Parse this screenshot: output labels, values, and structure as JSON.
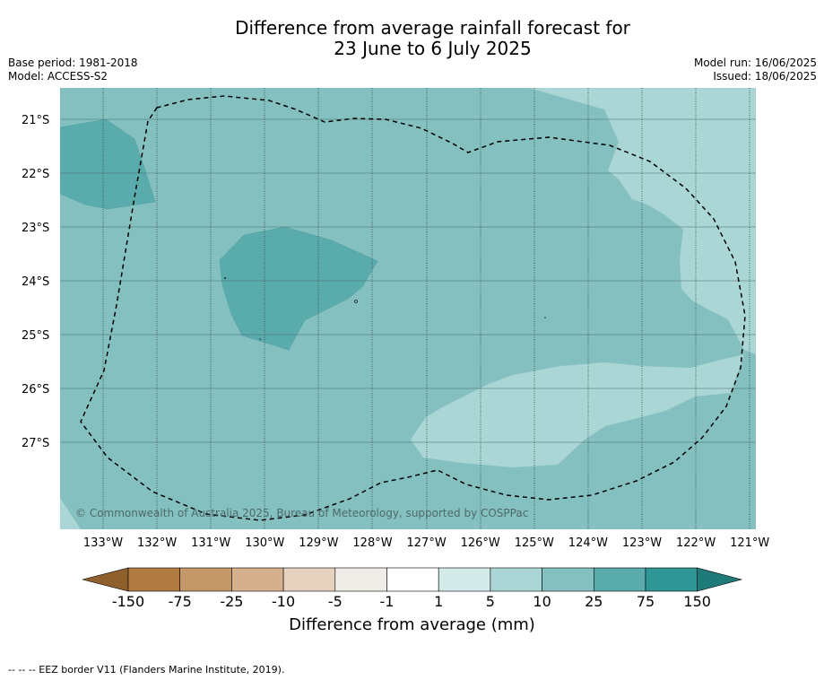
{
  "title_line1": "Difference from average rainfall forecast for",
  "title_line2": "23 June to 6 July 2025",
  "base_period": "Base period: 1981-2018",
  "model": "Model: ACCESS-S2",
  "model_run": "Model run: 16/06/2025",
  "issued": "Issued: 18/06/2025",
  "copyright": "© Commonwealth of Australia 2025, Bureau of Meteorology, supported by COSPPac",
  "x_ticks": [
    "133°W",
    "132°W",
    "131°W",
    "130°W",
    "129°W",
    "128°W",
    "127°W",
    "126°W",
    "125°W",
    "124°W",
    "123°W",
    "122°W",
    "121°W"
  ],
  "y_ticks": [
    "21°S",
    "22°S",
    "23°S",
    "24°S",
    "25°S",
    "26°S",
    "27°S"
  ],
  "colorbar": {
    "ticks": [
      "-150",
      "-75",
      "-25",
      "-10",
      "-5",
      "-1",
      "1",
      "5",
      "10",
      "25",
      "75",
      "150"
    ],
    "colors": [
      "#8f5f2c",
      "#b07a40",
      "#c39768",
      "#d4b08f",
      "#e6d2bf",
      "#f0ece7",
      "#ffffff",
      "#d4ebea",
      "#abd6d6",
      "#84c0c0",
      "#5aabab",
      "#2f9696",
      "#1f7a7a"
    ],
    "label": "Difference from average (mm)"
  },
  "footnote": "--  --  -- EEZ border V11 (Flanders Marine Institute, 2019).",
  "legend_colors": {
    "c10": "#84c0c0",
    "c5": "#abd6d6",
    "c25": "#5aabab"
  }
}
